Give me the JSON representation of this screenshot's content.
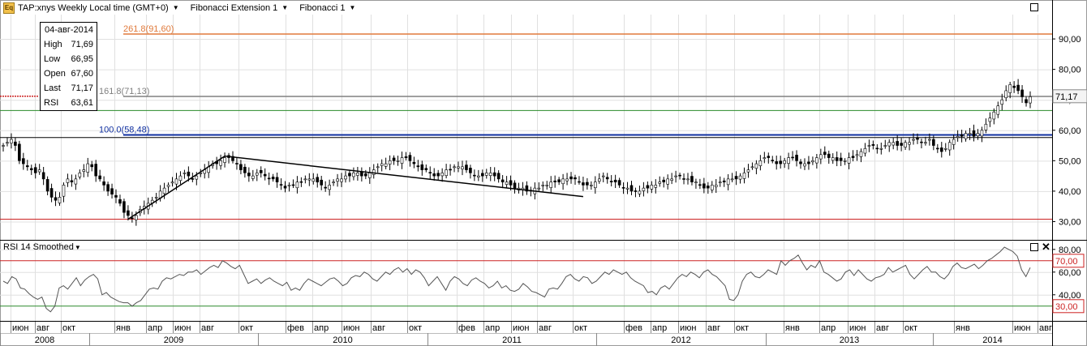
{
  "header": {
    "symbol_icon": "Eq",
    "title": "TAP:xnys Weekly Local time (GMT+0)",
    "fib_ext": "Fibonacci Extension 1",
    "fib": "Fibonacci 1"
  },
  "info": {
    "date": "04-авг-2014",
    "rows": [
      {
        "label": "High",
        "value": "71,69"
      },
      {
        "label": "Low",
        "value": "66,95"
      },
      {
        "label": "Open",
        "value": "67,60"
      },
      {
        "label": "Last",
        "value": "71,17"
      },
      {
        "label": "RSI",
        "value": "63,61"
      }
    ]
  },
  "rsi_panel": {
    "title": "RSI 14 Smoothed"
  },
  "colors": {
    "fib261": "#e07a3c",
    "fib161": "#808080",
    "fib100": "#1030a0",
    "green": "#2a8a2a",
    "red": "#cc2222",
    "rsi_line": "#555555",
    "grid": "#e0e0e0"
  },
  "chart_data": [
    {
      "type": "candlestick",
      "ylim": [
        24,
        98
      ],
      "yticks": [
        "90,00",
        "80,00",
        "70,00",
        "60,00",
        "50,00",
        "40,00",
        "30,00"
      ],
      "ytick_values": [
        90,
        80,
        70,
        60,
        50,
        40,
        30
      ],
      "last_price_label": "71,17",
      "last_price": 71.17,
      "x_months": [
        "июн",
        "авг",
        "окт",
        "янв",
        "апр",
        "июн",
        "авг",
        "окт",
        "фев",
        "апр",
        "июн",
        "авг",
        "окт",
        "фев",
        "апр",
        "июн",
        "авг",
        "окт",
        "фев",
        "апр",
        "июн",
        "авг",
        "окт",
        "янв",
        "апр",
        "июн",
        "авг",
        "окт",
        "янв",
        "июн",
        "авг"
      ],
      "x_years": [
        "2008",
        "2009",
        "2010",
        "2011",
        "2012",
        "2013",
        "2014"
      ],
      "fib_levels": [
        {
          "label": "261.8(91,60)",
          "value": 91.6
        },
        {
          "label": "161.8(71,13)",
          "value": 71.13
        },
        {
          "label": "100.0(58,48)",
          "value": 58.48
        }
      ],
      "h_lines": [
        {
          "value": 66.5,
          "kind": "green"
        },
        {
          "value": 57.6,
          "kind": "black"
        },
        {
          "value": 30.8,
          "kind": "red"
        }
      ],
      "closes": [
        55,
        56,
        57,
        55,
        50,
        49,
        48,
        47,
        46,
        47,
        44,
        40,
        38,
        37,
        38,
        42,
        44,
        43,
        44,
        46,
        47,
        49,
        48,
        45,
        44,
        42,
        40,
        39,
        38,
        36,
        33,
        32,
        31,
        32,
        34,
        35,
        36,
        37,
        38,
        40,
        41,
        42,
        43,
        44,
        45,
        46,
        45,
        44,
        45,
        46,
        47,
        48,
        49,
        49,
        50,
        51,
        51,
        50,
        49,
        47,
        46,
        45,
        45,
        46,
        46,
        45,
        44,
        44,
        43,
        42,
        41,
        42,
        42,
        43,
        43,
        44,
        44,
        44,
        43,
        42,
        41,
        42,
        43,
        44,
        44,
        45,
        45,
        46,
        46,
        45,
        45,
        46,
        47,
        48,
        49,
        49,
        50,
        50,
        50,
        51,
        51,
        50,
        49,
        48,
        47,
        47,
        46,
        45,
        45,
        46,
        47,
        47,
        48,
        48,
        48,
        47,
        46,
        45,
        45,
        45,
        46,
        46,
        45,
        44,
        43,
        43,
        42,
        41,
        41,
        41,
        40,
        40,
        41,
        41,
        42,
        42,
        43,
        43,
        43,
        44,
        44,
        44,
        44,
        43,
        42,
        42,
        42,
        43,
        44,
        45,
        44,
        43,
        43,
        42,
        41,
        41,
        40,
        40,
        40,
        41,
        41,
        42,
        42,
        43,
        43,
        44,
        44,
        45,
        45,
        44,
        44,
        43,
        43,
        42,
        41,
        41,
        42,
        42,
        43,
        43,
        44,
        44,
        44,
        45,
        46,
        47,
        48,
        49,
        50,
        51,
        51,
        50,
        49,
        49,
        50,
        51,
        51,
        50,
        49,
        49,
        49,
        50,
        51,
        52,
        52,
        51,
        51,
        50,
        50,
        50,
        51,
        51,
        52,
        53,
        54,
        55,
        55,
        54,
        54,
        55,
        56,
        56,
        55,
        55,
        56,
        56,
        57,
        57,
        56,
        56,
        57,
        55,
        54,
        53,
        54,
        56,
        57,
        58,
        58,
        59,
        59,
        58,
        59,
        60,
        62,
        64,
        66,
        68,
        70,
        73,
        75,
        74,
        73,
        71,
        69,
        71
      ]
    },
    {
      "type": "line",
      "name": "RSI 14 Smoothed",
      "ylim": [
        17,
        87
      ],
      "yticks": [
        "80,00",
        "60,00",
        "40,00"
      ],
      "ytick_values": [
        80,
        60,
        40
      ],
      "levels": [
        {
          "label": "70,00",
          "value": 70
        },
        {
          "label": "30,00",
          "value": 30
        }
      ],
      "values": [
        52,
        50,
        56,
        54,
        46,
        45,
        41,
        38,
        36,
        38,
        28,
        25,
        30,
        46,
        48,
        45,
        50,
        55,
        48,
        53,
        56,
        58,
        54,
        40,
        42,
        38,
        36,
        34,
        33,
        33,
        30,
        33,
        35,
        40,
        45,
        46,
        45,
        52,
        55,
        54,
        56,
        58,
        57,
        60,
        60,
        62,
        58,
        61,
        64,
        66,
        64,
        70,
        68,
        65,
        63,
        66,
        58,
        50,
        52,
        54,
        50,
        53,
        55,
        52,
        50,
        48,
        51,
        44,
        46,
        44,
        50,
        54,
        52,
        50,
        48,
        51,
        54,
        55,
        52,
        48,
        50,
        55,
        57,
        56,
        60,
        58,
        54,
        52,
        56,
        60,
        58,
        62,
        64,
        60,
        63,
        58,
        62,
        60,
        55,
        48,
        52,
        56,
        50,
        44,
        52,
        56,
        54,
        50,
        48,
        53,
        55,
        52,
        50,
        46,
        48,
        52,
        46,
        48,
        44,
        43,
        45,
        50,
        47,
        43,
        42,
        40,
        38,
        45,
        46,
        45,
        50,
        56,
        58,
        54,
        52,
        56,
        55,
        50,
        52,
        56,
        60,
        58,
        62,
        60,
        58,
        60,
        55,
        52,
        50,
        48,
        42,
        43,
        40,
        46,
        48,
        45,
        50,
        55,
        58,
        56,
        60,
        58,
        55,
        60,
        62,
        58,
        56,
        52,
        48,
        36,
        35,
        40,
        52,
        58,
        60,
        56,
        55,
        58,
        62,
        60,
        58,
        70,
        66,
        70,
        72,
        75,
        68,
        62,
        66,
        64,
        70,
        60,
        58,
        55,
        52,
        54,
        60,
        62,
        57,
        62,
        58,
        54,
        52,
        55,
        56,
        58,
        64,
        60,
        62,
        64,
        66,
        58,
        54,
        58,
        62,
        65,
        60,
        60,
        56,
        54,
        58,
        65,
        68,
        64,
        63,
        65,
        67,
        63,
        66,
        70,
        72,
        75,
        78,
        82,
        80,
        78,
        74,
        62,
        56,
        64
      ]
    }
  ]
}
